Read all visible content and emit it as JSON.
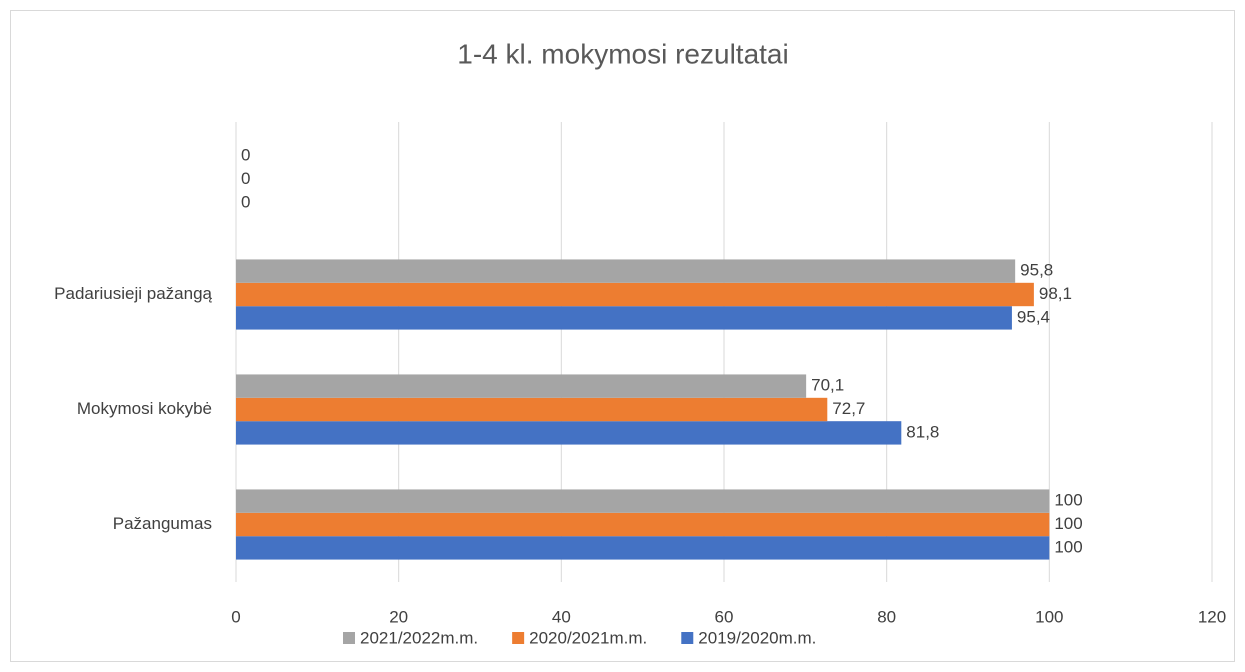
{
  "chart_data": {
    "type": "hbar",
    "title": "1-4 kl. mokymosi rezultatai",
    "categories": [
      "Pažangumas",
      "Mokymosi kokybė",
      "Padariusieji pažangą",
      null
    ],
    "series": [
      {
        "name": "2019/2020m.m.",
        "color": "#4472c4",
        "values": [
          100,
          81.8,
          95.4,
          0
        ],
        "value_labels": [
          "100",
          "81,8",
          "95,4",
          "0"
        ]
      },
      {
        "name": "2020/2021m.m.",
        "color": "#ed7d31",
        "values": [
          100,
          72.7,
          98.1,
          0
        ],
        "value_labels": [
          "100",
          "72,7",
          "98,1",
          "0"
        ]
      },
      {
        "name": "2021/2022m.m.",
        "color": "#a5a5a5",
        "values": [
          100,
          70.1,
          95.8,
          0
        ],
        "value_labels": [
          "100",
          "70,1",
          "95,8",
          "0"
        ]
      }
    ],
    "xlim": [
      0,
      120
    ],
    "xticks": [
      0,
      20,
      40,
      60,
      80,
      100,
      120
    ],
    "grid": true,
    "legend": "bottom"
  }
}
